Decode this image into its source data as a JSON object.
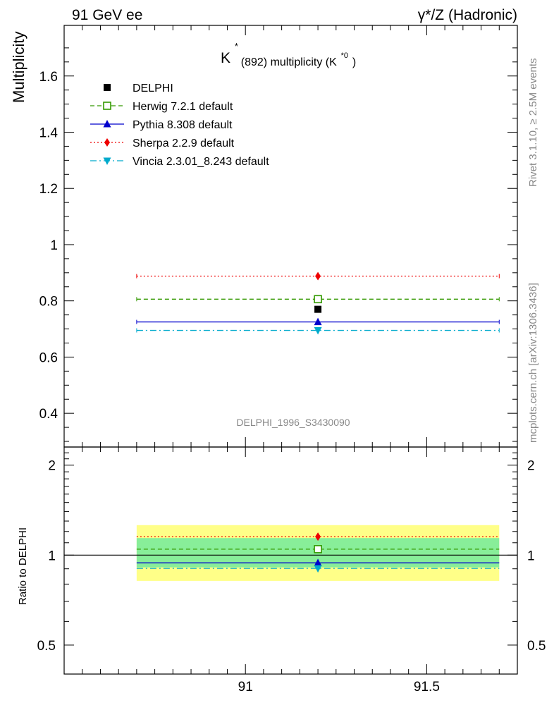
{
  "header": {
    "left": "91 GeV ee",
    "right": "γ*/Z (Hadronic)"
  },
  "side_notes": {
    "rivet": "Rivet 3.1.10, ≥ 2.5M events",
    "mcplots": "mcplots.cern.ch [arXiv:1306.3436]"
  },
  "chart_data": [
    {
      "type": "scatter",
      "title_main": "K",
      "title_sup": "*",
      "title_rest": "(892) multiplicity (K",
      "title_sup2": "*0",
      "title_end": ")",
      "ylabel": "Multiplicity",
      "watermark": "DELPHI_1996_S3430090",
      "xlim": [
        90.5,
        91.75
      ],
      "ylim": [
        0.28,
        1.78
      ],
      "yticks": [
        0.4,
        0.6,
        0.8,
        1.0,
        1.2,
        1.4,
        1.6
      ],
      "ytick_labels": [
        "0.4",
        "0.6",
        "0.8",
        "1",
        "1.2",
        "1.4",
        "1.6"
      ],
      "x_range": [
        90.7,
        91.7
      ],
      "x_point": 91.2,
      "legend_position": "top-left",
      "series": [
        {
          "name": "DELPHI",
          "value": 0.77,
          "color": "#000000",
          "marker": "square-filled",
          "line": "none"
        },
        {
          "name": "Herwig 7.2.1 default",
          "value": 0.806,
          "color": "#339900",
          "marker": "square-open",
          "line": "dashed"
        },
        {
          "name": "Pythia 8.308 default",
          "value": 0.725,
          "color": "#0000cc",
          "marker": "triangle-up",
          "line": "solid"
        },
        {
          "name": "Sherpa 2.2.9 default",
          "value": 0.888,
          "color": "#ee0000",
          "marker": "diamond",
          "line": "dotted"
        },
        {
          "name": "Vincia 2.3.01_8.243 default",
          "value": 0.695,
          "color": "#00aacc",
          "marker": "triangle-down",
          "line": "dashdot"
        }
      ]
    },
    {
      "type": "scatter",
      "ylabel": "Ratio to DELPHI",
      "ylim": [
        0.4,
        2.3
      ],
      "yscale": "log",
      "yticks": [
        0.5,
        1,
        2
      ],
      "ytick_labels": [
        "0.5",
        "1",
        "2"
      ],
      "xticks": [
        91,
        91.5
      ],
      "xtick_labels": [
        "91",
        "91.5"
      ],
      "band_outer": [
        0.82,
        1.26
      ],
      "band_inner": [
        0.91,
        1.14
      ],
      "band_outer_color": "#ffff88",
      "band_inner_color": "#88ee99",
      "series": [
        {
          "name": "Herwig 7.2.1 default",
          "value": 1.047
        },
        {
          "name": "Pythia 8.308 default",
          "value": 0.942
        },
        {
          "name": "Sherpa 2.2.9 default",
          "value": 1.153
        },
        {
          "name": "Vincia 2.3.01_8.243 default",
          "value": 0.903
        }
      ]
    }
  ]
}
